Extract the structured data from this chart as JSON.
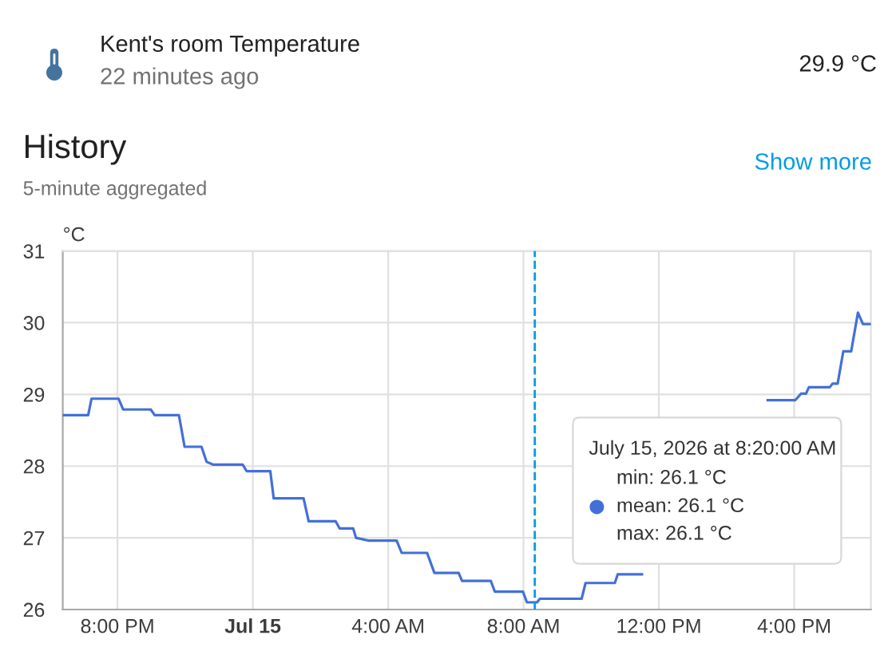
{
  "chart_data": {
    "type": "line",
    "title": "History",
    "subtitle": "5-minute aggregated",
    "ylabel": "°C",
    "x": [
      "2026-07-14T18:23",
      "2026-07-14T19:08",
      "2026-07-14T19:14",
      "2026-07-14T20:02",
      "2026-07-14T20:10",
      "2026-07-14T20:59",
      "2026-07-14T21:06",
      "2026-07-14T21:49",
      "2026-07-14T21:59",
      "2026-07-14T22:29",
      "2026-07-14T22:38",
      "2026-07-14T22:50",
      "2026-07-14T23:42",
      "2026-07-14T23:49",
      "2026-07-15T00:31",
      "2026-07-15T00:37",
      "2026-07-15T01:30",
      "2026-07-15T01:39",
      "2026-07-15T02:27",
      "2026-07-15T02:34",
      "2026-07-15T02:58",
      "2026-07-15T03:03",
      "2026-07-15T03:26",
      "2026-07-15T04:15",
      "2026-07-15T04:24",
      "2026-07-15T05:09",
      "2026-07-15T05:22",
      "2026-07-15T06:05",
      "2026-07-15T06:11",
      "2026-07-15T07:02",
      "2026-07-15T07:09",
      "2026-07-15T07:59",
      "2026-07-15T08:06",
      "2026-07-15T08:24",
      "2026-07-15T08:29",
      "2026-07-15T09:43",
      "2026-07-15T09:50",
      "2026-07-15T10:42",
      "2026-07-15T10:47",
      "2026-07-15T11:30",
      "2026-07-15T11:45",
      "2026-07-15T15:13",
      "2026-07-15T16:02",
      "2026-07-15T16:12",
      "2026-07-15T16:21",
      "2026-07-15T16:26",
      "2026-07-15T17:03",
      "2026-07-15T17:08",
      "2026-07-15T17:17",
      "2026-07-15T17:27",
      "2026-07-15T17:41",
      "2026-07-15T17:53",
      "2026-07-15T18:02",
      "2026-07-15T18:16"
    ],
    "series": [
      {
        "color": "#4370d8",
        "values": [
          28.71,
          28.71,
          28.94,
          28.94,
          28.79,
          28.79,
          28.71,
          28.71,
          28.27,
          28.27,
          28.06,
          28.02,
          28.02,
          27.93,
          27.93,
          27.55,
          27.55,
          27.23,
          27.23,
          27.13,
          27.13,
          27.0,
          26.96,
          26.96,
          26.79,
          26.79,
          26.51,
          26.51,
          26.4,
          26.4,
          26.25,
          26.25,
          26.1,
          26.1,
          26.15,
          26.15,
          26.37,
          26.37,
          26.49,
          26.49,
          null,
          28.92,
          28.92,
          29.01,
          29.01,
          29.1,
          29.1,
          29.15,
          29.15,
          29.6,
          29.6,
          30.14,
          29.98,
          29.98
        ]
      }
    ],
    "xlim": [
      "2026-07-14T18:23",
      "2026-07-15T18:16"
    ],
    "xticks": [
      {
        "value": "2026-07-14T20:00",
        "label": "8:00 PM"
      },
      {
        "value": "2026-07-15T00:00",
        "label": "Jul 15"
      },
      {
        "value": "2026-07-15T04:00",
        "label": "4:00 AM"
      },
      {
        "value": "2026-07-15T08:00",
        "label": "8:00 AM"
      },
      {
        "value": "2026-07-15T12:00",
        "label": "12:00 PM"
      },
      {
        "value": "2026-07-15T16:00",
        "label": "4:00 PM"
      }
    ],
    "ylim": [
      26,
      31
    ],
    "yticks": [
      26,
      27,
      28,
      29,
      30,
      31
    ],
    "grid": true,
    "ref_lines": [
      {
        "axis": "x",
        "value": "2026-07-15T08:20",
        "color": "#039be5",
        "line_style": "dashed"
      }
    ],
    "annotations": [
      "Kent's room Temperature",
      "22 minutes ago",
      "29.9 °C",
      "Show more",
      "July 15, 2026 at 8:20:00 AM",
      "min: 26.1 °C",
      "mean: 26.1 °C",
      "max: 26.1 °C"
    ]
  }
}
